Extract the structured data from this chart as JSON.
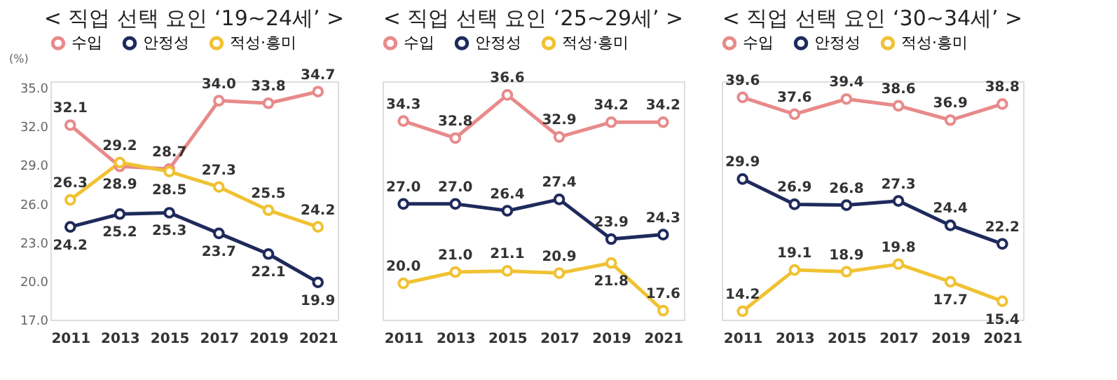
{
  "chart_data": [
    {
      "type": "line",
      "title": "< 직업 선택 요인 ‘19~24세’ >",
      "ylabel": "(%)",
      "categories": [
        "2011",
        "2013",
        "2015",
        "2017",
        "2019",
        "2021"
      ],
      "ylim": [
        17.0,
        35.5
      ],
      "yticks": [
        {
          "value": 17,
          "label": "17.0"
        },
        {
          "value": 20,
          "label": "20.0"
        },
        {
          "value": 23,
          "label": "23.0"
        },
        {
          "value": 26,
          "label": "26.0"
        },
        {
          "value": 29,
          "label": "29.0"
        },
        {
          "value": 32,
          "label": "32.0"
        },
        {
          "value": 35,
          "label": "35.0"
        }
      ],
      "legend": "top",
      "marker": "circle",
      "grid": false,
      "series": [
        {
          "name": "수입",
          "color": "#e88a8a",
          "values": [
            32.1,
            28.9,
            28.7,
            34.0,
            33.8,
            34.7
          ],
          "value_labels": [
            "32.1",
            "28.9",
            "28.7",
            "34.0",
            "33.8",
            "34.7"
          ]
        },
        {
          "name": "안정성",
          "color": "#1f2a5c",
          "values": [
            24.2,
            25.2,
            25.3,
            23.7,
            22.1,
            19.9
          ],
          "value_labels": [
            "24.2",
            "25.2",
            "25.3",
            "23.7",
            "22.1",
            "19.9"
          ]
        },
        {
          "name": "적성·흥미",
          "color": "#f0c232",
          "values": [
            26.3,
            29.2,
            28.5,
            27.3,
            25.5,
            24.2
          ],
          "value_labels": [
            "26.3",
            "29.2",
            "28.5",
            "27.3",
            "25.5",
            "24.2"
          ]
        }
      ]
    },
    {
      "type": "line",
      "title": "< 직업 선택 요인 ‘25~29세’ >",
      "categories": [
        "2011",
        "2013",
        "2015",
        "2017",
        "2019",
        "2021"
      ],
      "ylim": [
        16.8,
        37.8
      ],
      "tick_labels": "x",
      "legend": "top",
      "marker": "circle",
      "grid": false,
      "series": [
        {
          "name": "수입",
          "color": "#e88a8a",
          "values": [
            34.3,
            32.8,
            36.6,
            32.9,
            34.2,
            34.2
          ],
          "value_labels": [
            "34.3",
            "32.8",
            "36.6",
            "32.9",
            "34.2",
            "34.2"
          ]
        },
        {
          "name": "안정성",
          "color": "#1f2a5c",
          "values": [
            27.0,
            27.0,
            26.4,
            27.4,
            23.9,
            24.3
          ],
          "value_labels": [
            "27.0",
            "27.0",
            "26.4",
            "27.4",
            "23.9",
            "24.3"
          ]
        },
        {
          "name": "적성·흥미",
          "color": "#f0c232",
          "values": [
            20.0,
            21.0,
            21.1,
            20.9,
            21.8,
            17.6
          ],
          "value_labels": [
            "20.0",
            "21.0",
            "21.1",
            "20.9",
            "21.8",
            "17.6"
          ]
        }
      ]
    },
    {
      "type": "line",
      "title": "< 직업 선택 요인 ‘30~34세’ >",
      "categories": [
        "2011",
        "2013",
        "2015",
        "2017",
        "2019",
        "2021"
      ],
      "ylim": [
        13.2,
        41.5
      ],
      "tick_labels": "x",
      "legend": "top",
      "marker": "circle",
      "grid": false,
      "series": [
        {
          "name": "수입",
          "color": "#e88a8a",
          "values": [
            39.6,
            37.6,
            39.4,
            38.6,
            36.9,
            38.8
          ],
          "value_labels": [
            "39.6",
            "37.6",
            "39.4",
            "38.6",
            "36.9",
            "38.8"
          ]
        },
        {
          "name": "안정성",
          "color": "#1f2a5c",
          "values": [
            29.9,
            26.9,
            26.8,
            27.3,
            24.4,
            22.2
          ],
          "value_labels": [
            "29.9",
            "26.9",
            "26.8",
            "27.3",
            "24.4",
            "22.2"
          ]
        },
        {
          "name": "적성·흥미",
          "color": "#f0c232",
          "values": [
            14.2,
            19.1,
            18.9,
            19.8,
            17.7,
            15.4
          ],
          "value_labels": [
            "14.2",
            "19.1",
            "18.9",
            "19.8",
            "17.7",
            "15.4"
          ]
        }
      ]
    }
  ]
}
